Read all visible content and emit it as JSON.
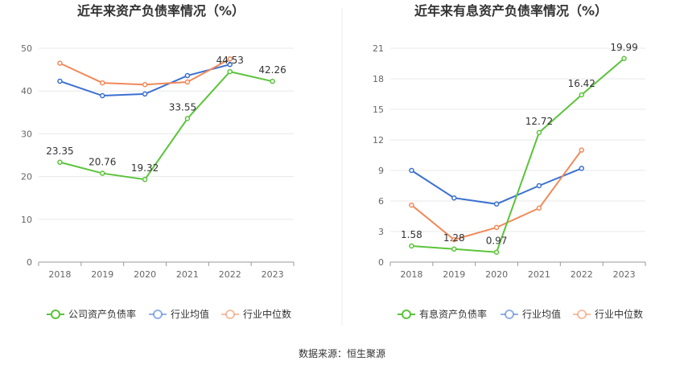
{
  "source": "数据来源：恒生聚源",
  "chart_data": [
    {
      "type": "line",
      "title": "近年来资产负债率情况（%）",
      "categories": [
        "2018",
        "2019",
        "2020",
        "2021",
        "2022",
        "2023"
      ],
      "ylim": [
        0,
        50
      ],
      "yticks": [
        0,
        10,
        20,
        30,
        40,
        50
      ],
      "legend_position": "bottom",
      "grid": true,
      "series": [
        {
          "name": "公司资产负债率",
          "color": "#5bc43a",
          "labels": true,
          "values": [
            23.35,
            20.76,
            19.32,
            33.55,
            44.53,
            42.26
          ]
        },
        {
          "name": "行业均值",
          "color": "#3a70d0",
          "labels": false,
          "values": [
            42.3,
            38.9,
            39.3,
            43.6,
            46.2,
            null
          ]
        },
        {
          "name": "行业中位数",
          "color": "#f08a5a",
          "labels": false,
          "values": [
            46.5,
            41.9,
            41.5,
            42.1,
            47.5,
            null
          ]
        }
      ]
    },
    {
      "type": "line",
      "title": "近年来有息资产负债率情况（%）",
      "categories": [
        "2018",
        "2019",
        "2020",
        "2021",
        "2022",
        "2023"
      ],
      "ylim": [
        0,
        21
      ],
      "yticks": [
        0,
        3,
        6,
        9,
        12,
        15,
        18,
        21
      ],
      "legend_position": "bottom",
      "grid": true,
      "series": [
        {
          "name": "有息资产负债率",
          "color": "#5bc43a",
          "labels": true,
          "values": [
            1.58,
            1.28,
            0.97,
            12.72,
            16.42,
            19.99
          ]
        },
        {
          "name": "行业均值",
          "color": "#3a70d0",
          "labels": false,
          "values": [
            9.0,
            6.3,
            5.7,
            7.5,
            9.2,
            null
          ]
        },
        {
          "name": "行业中位数",
          "color": "#f08a5a",
          "labels": false,
          "values": [
            5.6,
            2.2,
            3.4,
            5.3,
            11.0,
            null
          ]
        }
      ]
    }
  ]
}
